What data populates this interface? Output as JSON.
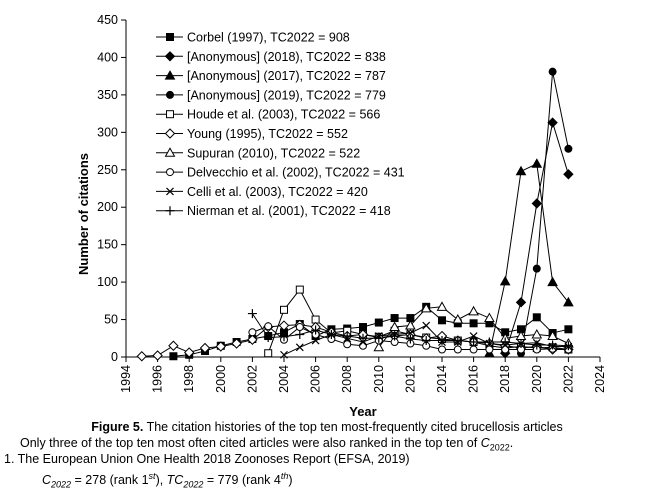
{
  "chart_data": {
    "type": "line",
    "title": "",
    "xlabel": "Year",
    "ylabel": "Number of citations",
    "xlim": [
      1994,
      2024
    ],
    "ylim": [
      0,
      450
    ],
    "xticks": [
      1994,
      1996,
      1998,
      2000,
      2002,
      2004,
      2006,
      2008,
      2010,
      2012,
      2014,
      2016,
      2018,
      2020,
      2022,
      2024
    ],
    "yticks": [
      0,
      50,
      100,
      150,
      200,
      250,
      300,
      350,
      400,
      450
    ],
    "legend_position": "top-left",
    "series": [
      {
        "name": "Corbel (1997), TC2022 = 908",
        "marker": "square-filled",
        "x": [
          1997,
          1998,
          1999,
          2000,
          2001,
          2002,
          2003,
          2004,
          2005,
          2006,
          2007,
          2008,
          2009,
          2010,
          2011,
          2012,
          2013,
          2014,
          2015,
          2016,
          2017,
          2018,
          2019,
          2020,
          2021,
          2022
        ],
        "y": [
          1,
          3,
          8,
          15,
          20,
          24,
          28,
          33,
          44,
          28,
          37,
          38,
          40,
          46,
          52,
          52,
          67,
          49,
          45,
          45,
          45,
          33,
          37,
          53,
          32,
          37
        ]
      },
      {
        "name": "[Anonymous] (2018), TC2022 = 838",
        "marker": "diamond-filled",
        "x": [
          2018,
          2019,
          2020,
          2021,
          2022
        ],
        "y": [
          5,
          73,
          205,
          313,
          244
        ]
      },
      {
        "name": "[Anonymous] (2017), TC2022 = 787",
        "marker": "triangle-filled",
        "x": [
          2017,
          2018,
          2019,
          2020,
          2021,
          2022
        ],
        "y": [
          5,
          101,
          248,
          258,
          100,
          73
        ]
      },
      {
        "name": "[Anonymous] (2019), TC2022 = 779",
        "marker": "circle-filled",
        "x": [
          2019,
          2020,
          2021,
          2022
        ],
        "y": [
          5,
          118,
          381,
          278
        ]
      },
      {
        "name": "Houde et al. (2003), TC2022 = 566",
        "marker": "square-open",
        "x": [
          2003,
          2004,
          2005,
          2006,
          2007,
          2008,
          2009,
          2010,
          2011,
          2012,
          2013,
          2014,
          2015,
          2016,
          2017,
          2018,
          2019,
          2020,
          2021,
          2022
        ],
        "y": [
          5,
          63,
          90,
          50,
          32,
          35,
          30,
          27,
          35,
          30,
          26,
          24,
          22,
          20,
          15,
          12,
          14,
          12,
          13,
          10
        ]
      },
      {
        "name": "Young (1995), TC2022 = 552",
        "marker": "diamond-open",
        "x": [
          1995,
          1996,
          1997,
          1998,
          1999,
          2000,
          2001,
          2002,
          2003,
          2004,
          2005,
          2006,
          2007,
          2008,
          2009,
          2010,
          2011,
          2012,
          2013,
          2014,
          2015,
          2016,
          2017,
          2018,
          2019,
          2020,
          2021,
          2022
        ],
        "y": [
          1,
          2,
          15,
          6,
          12,
          14,
          18,
          23,
          40,
          42,
          43,
          40,
          33,
          28,
          30,
          26,
          28,
          30,
          25,
          28,
          22,
          20,
          18,
          15,
          12,
          14,
          10,
          10
        ]
      },
      {
        "name": "Supuran (2010), TC2022 = 522",
        "marker": "triangle-open",
        "x": [
          2010,
          2011,
          2012,
          2013,
          2014,
          2015,
          2016,
          2017,
          2018,
          2019,
          2020,
          2021,
          2022
        ],
        "y": [
          13,
          40,
          42,
          65,
          67,
          50,
          61,
          52,
          25,
          28,
          30,
          28,
          18
        ]
      },
      {
        "name": "Delvecchio et al. (2002), TC2022 = 431",
        "marker": "circle-open",
        "x": [
          2002,
          2003,
          2004,
          2005,
          2006,
          2007,
          2008,
          2009,
          2010,
          2011,
          2012,
          2013,
          2014,
          2015,
          2016,
          2017,
          2018,
          2019,
          2020,
          2021,
          2022
        ],
        "y": [
          33,
          41,
          23,
          40,
          30,
          24,
          17,
          15,
          22,
          20,
          18,
          15,
          10,
          10,
          10,
          10,
          10,
          10,
          10,
          11,
          10
        ]
      },
      {
        "name": "Celli et al. (2003), TC2022 = 420",
        "marker": "x",
        "x": [
          2004,
          2005,
          2006,
          2007,
          2008,
          2009,
          2010,
          2011,
          2012,
          2013,
          2014,
          2015,
          2016,
          2017,
          2018,
          2019,
          2020,
          2021,
          2022
        ],
        "y": [
          3,
          13,
          22,
          30,
          25,
          20,
          28,
          30,
          32,
          42,
          20,
          20,
          28,
          18,
          16,
          18,
          19,
          14,
          14
        ]
      },
      {
        "name": "Nierman et al. (2001), TC2022 = 418",
        "marker": "plus",
        "x": [
          2002,
          2003,
          2004,
          2005,
          2006,
          2007,
          2008,
          2009,
          2010,
          2011,
          2012,
          2013,
          2014,
          2015,
          2016,
          2017,
          2018,
          2019,
          2020,
          2021,
          2022
        ],
        "y": [
          58,
          26,
          27,
          30,
          36,
          30,
          28,
          25,
          25,
          28,
          24,
          22,
          22,
          22,
          20,
          20,
          20,
          18,
          16,
          16,
          15
        ]
      }
    ]
  },
  "caption": {
    "figure_label": "Figure 5.",
    "figure_text": " The citation histories of the top ten most-frequently cited brucellosis articles",
    "note_text": "Only three of the top ten most often cited articles were also ranked in the top ten of ",
    "note_c": "C",
    "note_sub": "2022",
    "note_end": ".",
    "ref_text": "1. The European Union One Health 2018 Zoonoses Report (EFSA, 2019)",
    "rank_c": "C",
    "rank_c_sub": "2022",
    "rank_c_val": " = 278 (rank 1",
    "rank_c_sup": "st",
    "rank_mid": "), ",
    "rank_tc": "TC",
    "rank_tc_sub": "2022",
    "rank_tc_val": " = 779 (rank 4",
    "rank_tc_sup": "th",
    "rank_end": ")"
  }
}
